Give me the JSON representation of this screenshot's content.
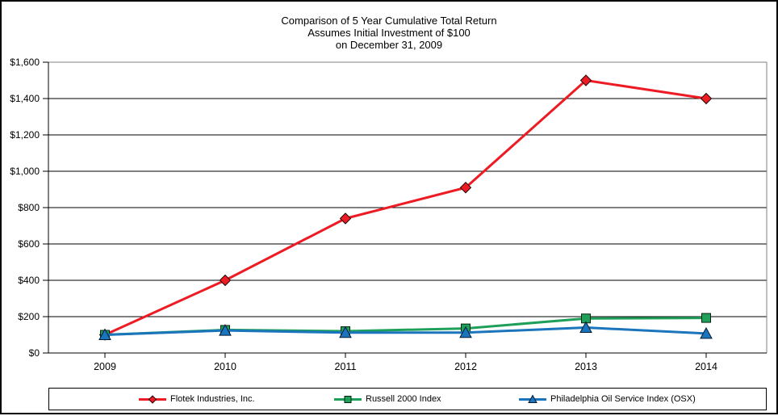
{
  "window": {
    "background": "#ffffff",
    "border_color": "#000000"
  },
  "chart_data": {
    "type": "line",
    "title_lines": [
      "Comparison of 5 Year Cumulative Total Return",
      "Assumes Initial Investment of $100",
      "on December 31, 2009"
    ],
    "categories": [
      "2009",
      "2010",
      "2011",
      "2012",
      "2013",
      "2014"
    ],
    "series": [
      {
        "name": "Flotek Industries, Inc.",
        "marker": "diamond",
        "color": "#ed1c24",
        "values": [
          100,
          400,
          740,
          910,
          1500,
          1400
        ]
      },
      {
        "name": "Russell 2000 Index",
        "marker": "square",
        "color": "#1fa05a",
        "values": [
          100,
          127,
          120,
          135,
          190,
          193
        ]
      },
      {
        "name": "Philadelphia Oil Service Index (OSX)",
        "marker": "triangle",
        "color": "#1b75bc",
        "values": [
          100,
          124,
          112,
          112,
          140,
          107
        ]
      }
    ],
    "ylim": [
      0,
      1600
    ],
    "ytick_step": 200,
    "y_tick_labels": [
      "$0",
      "$200",
      "$400",
      "$600",
      "$800",
      "$1,000",
      "$1,200",
      "$1,400",
      "$1,600"
    ],
    "grid": true,
    "gridline_color": "#000000",
    "plot_border_color": "#808080",
    "legend_position": "bottom"
  }
}
